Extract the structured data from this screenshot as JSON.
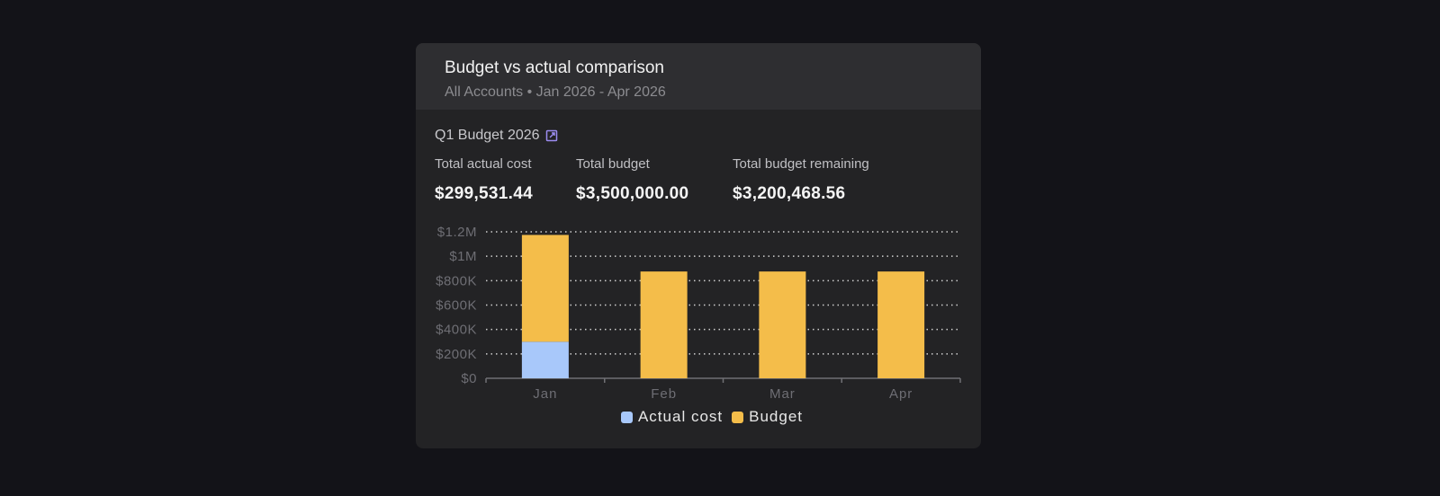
{
  "card": {
    "title": "Budget vs actual comparison",
    "subtitle": "All Accounts • Jan 2026 - Apr 2026"
  },
  "budget": {
    "name": "Q1 Budget 2026",
    "link_icon": "external-link-icon",
    "link_color": "#9b8cf0"
  },
  "stats": [
    {
      "label": "Total actual cost",
      "value": "$299,531.44"
    },
    {
      "label": "Total budget",
      "value": "$3,500,000.00"
    },
    {
      "label": "Total budget remaining",
      "value": "$3,200,468.56"
    }
  ],
  "chart_data": {
    "type": "bar",
    "stacked": true,
    "categories": [
      "Jan",
      "Feb",
      "Mar",
      "Apr"
    ],
    "series": [
      {
        "name": "Actual cost",
        "values": [
          299531.44,
          0,
          0,
          0
        ],
        "color": "#a8c8fa"
      },
      {
        "name": "Budget",
        "values": [
          875000,
          875000,
          875000,
          875000
        ],
        "color": "#f4bd4a"
      }
    ],
    "ylim": [
      0,
      1200000
    ],
    "yticks": [
      0,
      200000,
      400000,
      600000,
      800000,
      1000000,
      1200000
    ],
    "ytick_labels": [
      "$0",
      "$200K",
      "$400K",
      "$600K",
      "$800K",
      "$1M",
      "$1.2M"
    ],
    "grid": true,
    "legend": "bottom"
  }
}
